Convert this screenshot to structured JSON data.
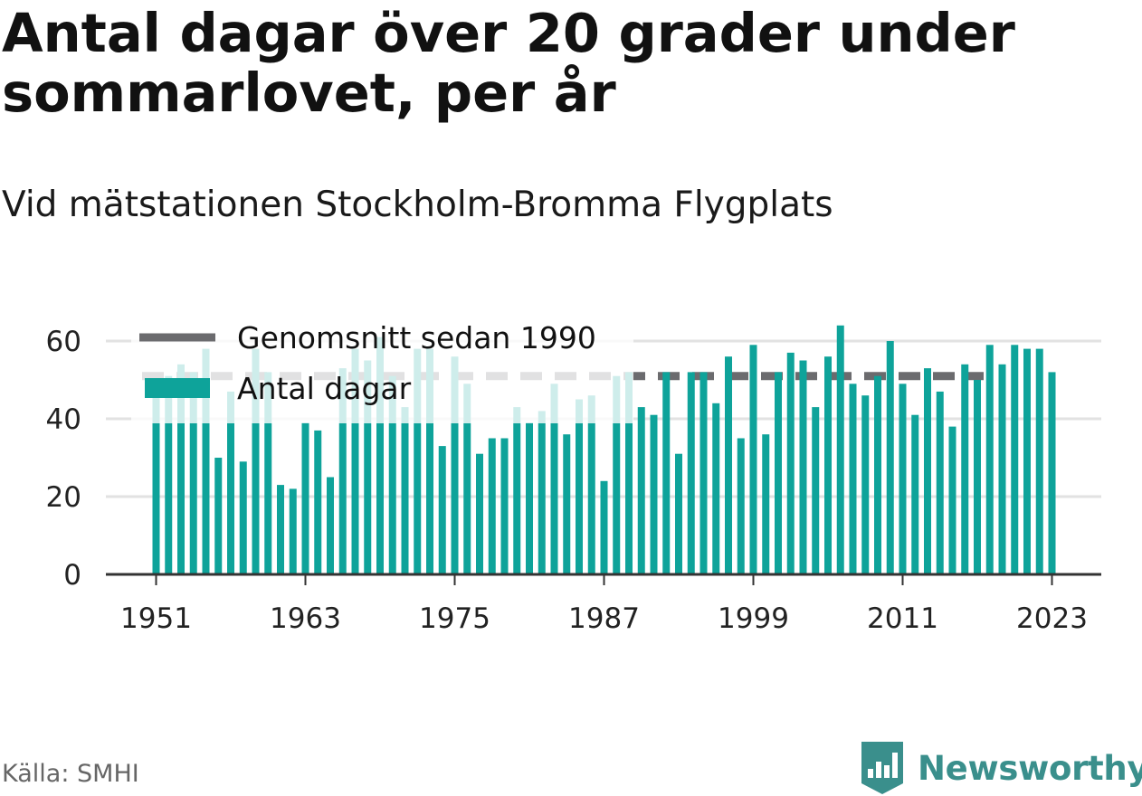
{
  "chart_data": {
    "type": "bar",
    "title": "Antal dagar över 20 grader under sommarlovet, per år",
    "subtitle": "Vid mätstationen Stockholm-Bromma Flygplats",
    "xlabel": "",
    "ylabel": "",
    "ylim": [
      0,
      65
    ],
    "yticks": [
      0,
      20,
      40,
      60
    ],
    "xticks": [
      1951,
      1963,
      1975,
      1987,
      1999,
      2011,
      2023
    ],
    "grid": true,
    "legend_position": "top-left",
    "years": [
      1951,
      1952,
      1953,
      1954,
      1955,
      1956,
      1957,
      1958,
      1959,
      1960,
      1961,
      1962,
      1963,
      1964,
      1965,
      1966,
      1967,
      1968,
      1969,
      1970,
      1971,
      1972,
      1973,
      1974,
      1975,
      1976,
      1977,
      1978,
      1979,
      1980,
      1981,
      1982,
      1983,
      1984,
      1985,
      1986,
      1987,
      1988,
      1989,
      1990,
      1991,
      1992,
      1993,
      1994,
      1995,
      1996,
      1997,
      1998,
      1999,
      2000,
      2001,
      2002,
      2003,
      2004,
      2005,
      2006,
      2007,
      2008,
      2009,
      2010,
      2011,
      2012,
      2013,
      2014,
      2015,
      2016,
      2017,
      2018,
      2019,
      2020,
      2021,
      2022,
      2023
    ],
    "series": [
      {
        "name": "Antal dagar",
        "color": "#0ea39a",
        "values": [
          50,
          51,
          54,
          52,
          58,
          30,
          47,
          29,
          58,
          52,
          23,
          22,
          39,
          37,
          25,
          53,
          58,
          55,
          61,
          51,
          43,
          58,
          58,
          33,
          56,
          49,
          31,
          35,
          35,
          43,
          39,
          42,
          49,
          36,
          45,
          46,
          24,
          51,
          52,
          43,
          41,
          52,
          31,
          52,
          52,
          44,
          56,
          35,
          59,
          36,
          52,
          57,
          55,
          43,
          56,
          64,
          49,
          46,
          51,
          60,
          49,
          41,
          53,
          47,
          38,
          54,
          50,
          59,
          54,
          59,
          58,
          58,
          52
        ]
      },
      {
        "name": "Genomsnitt sedan 1990",
        "color": "#6b6b6e",
        "value": 51
      }
    ]
  },
  "legend": {
    "avg_label": "Genomsnitt sedan 1990",
    "bars_label": "Antal dagar"
  },
  "footer": {
    "source": "Källa: SMHI",
    "brand": "Newsworthy"
  },
  "colors": {
    "bar": "#0ea39a",
    "average_line": "#6b6b6e",
    "grid": "#e2e2e2",
    "axis": "#333333",
    "brand": "#3a8f8c"
  }
}
